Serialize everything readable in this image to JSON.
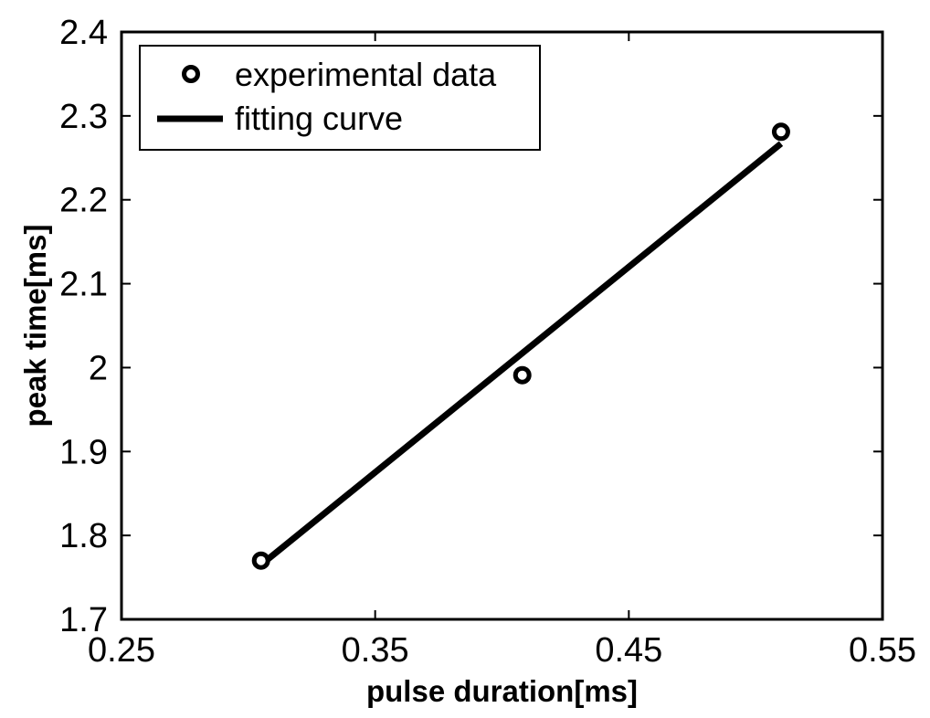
{
  "chart_data": {
    "type": "scatter",
    "title": "",
    "xlabel": "pulse duration[ms]",
    "ylabel": "peak time[ms]",
    "xlim": [
      0.25,
      0.55
    ],
    "ylim": [
      1.7,
      2.4
    ],
    "xticks": [
      0.25,
      0.35,
      0.45,
      0.55
    ],
    "xtick_labels": [
      "0.25",
      "0.35",
      "0.45",
      "0.55"
    ],
    "yticks": [
      1.7,
      1.8,
      1.9,
      2.0,
      2.1,
      2.2,
      2.3,
      2.4
    ],
    "ytick_labels": [
      "1.7",
      "1.8",
      "1.9",
      "2",
      "2.1",
      "2.2",
      "2.3",
      "2.4"
    ],
    "grid": false,
    "legend_position": "top-left",
    "series": [
      {
        "name": "experimental data",
        "kind": "markers",
        "marker": "circle",
        "x": [
          0.305,
          0.408,
          0.51
        ],
        "y": [
          1.77,
          1.991,
          2.281
        ]
      },
      {
        "name": "fitting curve",
        "kind": "line",
        "x": [
          0.305,
          0.51
        ],
        "y": [
          1.765,
          2.267
        ]
      }
    ],
    "colors": {
      "marks": "#000000",
      "background": "#ffffff"
    }
  }
}
